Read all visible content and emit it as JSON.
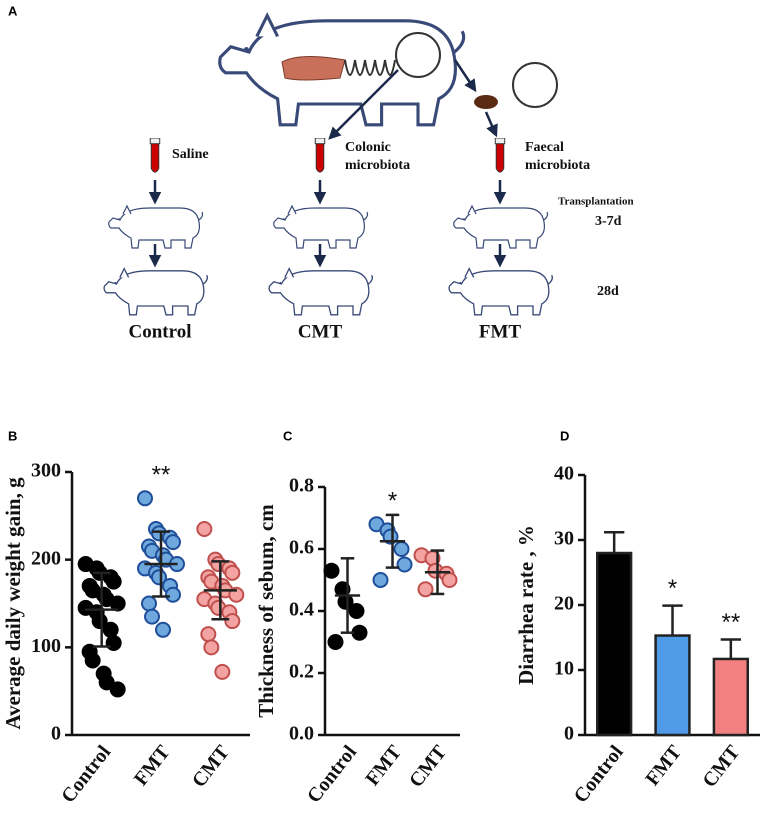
{
  "panel_a": {
    "panel_label": "A",
    "saline": "Saline",
    "colonic": [
      "Colonic",
      "microbiota"
    ],
    "faecal": [
      "Faecal",
      "microbiota"
    ],
    "transplantation": "Transplantation",
    "period_1": "3-7d",
    "period_2": "28d",
    "groups": [
      "Control",
      "CMT",
      "FMT"
    ]
  },
  "chart_data": [
    {
      "type": "dot",
      "panel_label": "B",
      "ylabel": "Average daily weight gain, g",
      "categories": [
        "Control",
        "FMT",
        "CMT"
      ],
      "colors": [
        "#000000",
        "#6fa8dc",
        "#f4a3a3"
      ],
      "edge_colors": [
        "#000000",
        "#1f4e9a",
        "#c0504d"
      ],
      "points": [
        [
          195,
          190,
          185,
          180,
          175,
          170,
          165,
          160,
          155,
          150,
          145,
          140,
          130,
          120,
          105,
          95,
          85,
          70,
          60,
          52
        ],
        [
          270,
          235,
          230,
          225,
          220,
          215,
          210,
          205,
          200,
          195,
          190,
          185,
          180,
          170,
          160,
          150,
          135,
          120
        ],
        [
          235,
          200,
          195,
          190,
          185,
          180,
          175,
          170,
          165,
          160,
          155,
          150,
          145,
          140,
          130,
          115,
          100,
          72
        ]
      ],
      "means": [
        143,
        195,
        165
      ],
      "sds": [
        42,
        37,
        33
      ],
      "significance": [
        null,
        "**",
        null
      ],
      "ylim": [
        0,
        300
      ],
      "yticks": [
        0,
        100,
        200,
        300
      ]
    },
    {
      "type": "dot",
      "panel_label": "C",
      "ylabel": "Thickness of sebum, cm",
      "categories": [
        "Control",
        "FMT",
        "CMT"
      ],
      "colors": [
        "#000000",
        "#6fa8dc",
        "#f4a3a3"
      ],
      "edge_colors": [
        "#000000",
        "#1f4e9a",
        "#c0504d"
      ],
      "points": [
        [
          0.53,
          0.47,
          0.43,
          0.4,
          0.33,
          0.3
        ],
        [
          0.68,
          0.66,
          0.64,
          0.6,
          0.55,
          0.5
        ],
        [
          0.58,
          0.57,
          0.53,
          0.52,
          0.5,
          0.47
        ]
      ],
      "means": [
        0.45,
        0.625,
        0.525
      ],
      "sds": [
        0.12,
        0.085,
        0.07
      ],
      "significance": [
        null,
        "*",
        null
      ],
      "ylim": [
        0,
        0.8
      ],
      "yticks": [
        {
          "value": 0,
          "label": "0.0"
        },
        0.2,
        0.4,
        0.6,
        0.8
      ]
    },
    {
      "type": "bar",
      "panel_label": "D",
      "ylabel": "Diarrhea rate , %",
      "categories": [
        "Control",
        "FMT",
        "CMT"
      ],
      "colors": [
        "#000000",
        "#4f9be8",
        "#f28080"
      ],
      "values": [
        28,
        15.3,
        11.7
      ],
      "errors": [
        3.2,
        4.6,
        3.0
      ],
      "significance": [
        null,
        "*",
        "**"
      ],
      "ylim": [
        0,
        40
      ],
      "yticks": [
        0,
        10,
        20,
        30,
        40
      ]
    }
  ]
}
